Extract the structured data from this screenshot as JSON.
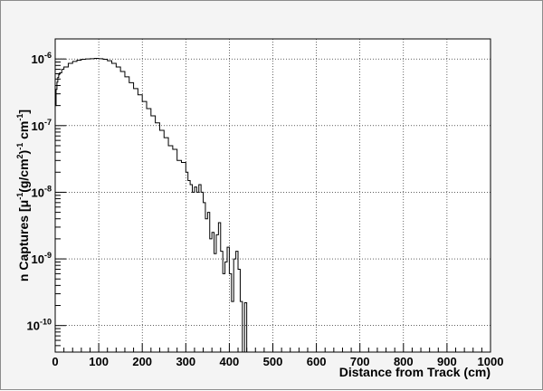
{
  "chart_data": {
    "type": "line",
    "style": "step-histogram",
    "title": "",
    "xlabel": "Distance from Track (cm)",
    "ylabel": "n Captures [μ⁻¹(g/cm²)⁻¹ cm⁻¹]",
    "ylabel_parts": {
      "a": "n Captures [",
      "mu": "μ",
      "s1": "-1",
      "b": "(g/cm",
      "s2": "2",
      "c": ")",
      "s3": "-1",
      "d": " cm",
      "s4": "-1",
      "e": "]"
    },
    "xlim": [
      0,
      1000
    ],
    "ylim": [
      4e-11,
      2e-06
    ],
    "yscale": "log",
    "grid": true,
    "legend": "none",
    "xticks": [
      0,
      100,
      200,
      300,
      400,
      500,
      600,
      700,
      800,
      900,
      1000
    ],
    "yticks": [
      {
        "value": 1e-06,
        "base": "10",
        "exp": "-6"
      },
      {
        "value": 1e-07,
        "base": "10",
        "exp": "-7"
      },
      {
        "value": 1e-08,
        "base": "10",
        "exp": "-8"
      },
      {
        "value": 1e-09,
        "base": "10",
        "exp": "-9"
      },
      {
        "value": 1e-10,
        "base": "10",
        "exp": "-10"
      }
    ],
    "bin_width": 2,
    "series": [
      {
        "line_color": "#000000",
        "points": [
          [
            0,
            2e-07
          ],
          [
            2,
            3.5e-07
          ],
          [
            4,
            4.5e-07
          ],
          [
            6,
            5.3e-07
          ],
          [
            8,
            5.8e-07
          ],
          [
            10,
            6.2e-07
          ],
          [
            15,
            7e-07
          ],
          [
            20,
            7.6e-07
          ],
          [
            30,
            8.6e-07
          ],
          [
            40,
            9.2e-07
          ],
          [
            50,
            9.6e-07
          ],
          [
            60,
            9.9e-07
          ],
          [
            70,
            1e-06
          ],
          [
            80,
            1.01e-06
          ],
          [
            90,
            1.02e-06
          ],
          [
            100,
            1.01e-06
          ],
          [
            110,
            9.9e-07
          ],
          [
            120,
            9.4e-07
          ],
          [
            130,
            8.6e-07
          ],
          [
            140,
            7.6e-07
          ],
          [
            150,
            6.5e-07
          ],
          [
            160,
            5.4e-07
          ],
          [
            170,
            4.4e-07
          ],
          [
            180,
            3.6e-07
          ],
          [
            190,
            2.9e-07
          ],
          [
            200,
            2.3e-07
          ],
          [
            210,
            1.8e-07
          ],
          [
            220,
            1.4e-07
          ],
          [
            230,
            1.1e-07
          ],
          [
            240,
            8.5e-08
          ],
          [
            250,
            6.6e-08
          ],
          [
            260,
            5e-08
          ],
          [
            270,
            4.4e-08
          ],
          [
            280,
            3e-08
          ],
          [
            290,
            2.8e-08
          ],
          [
            300,
            2e-08
          ],
          [
            305,
            1.5e-08
          ],
          [
            310,
            1.3e-08
          ],
          [
            315,
            1e-08
          ],
          [
            320,
            1.2e-08
          ],
          [
            325,
            1e-08
          ],
          [
            330,
            1.3e-08
          ],
          [
            335,
            1e-08
          ],
          [
            340,
            7e-09
          ],
          [
            345,
            4e-09
          ],
          [
            350,
            5e-09
          ],
          [
            355,
            2e-09
          ],
          [
            360,
            2.5e-09
          ],
          [
            365,
            1.2e-09
          ],
          [
            370,
            2.3e-09
          ],
          [
            375,
            3.5e-09
          ],
          [
            380,
            1.3e-09
          ],
          [
            385,
            6e-10
          ],
          [
            390,
            9e-10
          ],
          [
            395,
            1.5e-09
          ],
          [
            400,
            6e-10
          ],
          [
            405,
            2.3e-10
          ],
          [
            410,
            1e-09
          ],
          [
            415,
            1.3e-09
          ],
          [
            420,
            7e-10
          ],
          [
            425,
            2.3e-10
          ],
          [
            430,
            4e-11
          ],
          [
            435,
            2.2e-10
          ],
          [
            440,
            4e-11
          ]
        ]
      }
    ]
  }
}
